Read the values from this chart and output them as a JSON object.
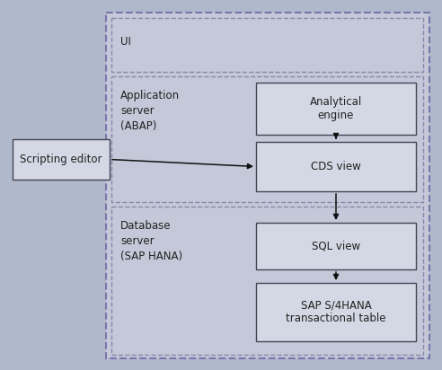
{
  "bg_color": "#b0b8cc",
  "box_fill": "#d4d8e4",
  "box_edge": "#444455",
  "section_fill": "#c4c8d8",
  "arrow_color": "#111111",
  "text_color": "#222222",
  "font_size": 8.5,
  "fig_w": 4.92,
  "fig_h": 4.12,
  "dpi": 100,
  "ui_label": "UI",
  "app_label": "Application\nserver\n(ABAP)",
  "db_label": "Database\nserver\n(SAP HANA)",
  "scripting_label": "Scripting editor",
  "analytical_label": "Analytical\nengine",
  "cds_label": "CDS view",
  "sql_label": "SQL view",
  "sap_label": "SAP S/4HANA\ntransactional table"
}
